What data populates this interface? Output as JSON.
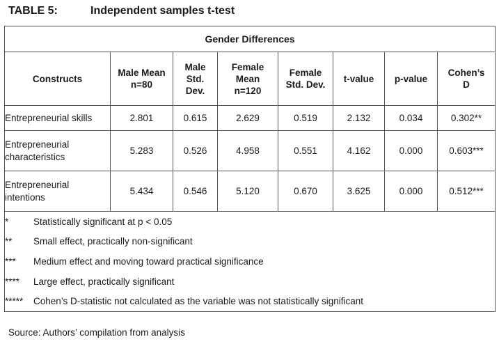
{
  "caption": {
    "number": "TABLE 5:",
    "title": "Independent samples t-test"
  },
  "table": {
    "group_header": "Gender Differences",
    "columns": [
      [
        "Constructs"
      ],
      [
        "Male Mean",
        "n=80"
      ],
      [
        "Male",
        "Std.",
        "Dev."
      ],
      [
        "Female",
        "Mean",
        "n=120"
      ],
      [
        "Female",
        "Std. Dev."
      ],
      [
        "t-value"
      ],
      [
        "p-value"
      ],
      [
        "Cohen’s",
        "D"
      ]
    ],
    "rows": [
      {
        "construct": [
          "Entrepreneurial skills"
        ],
        "values": [
          "2.801",
          "0.615",
          "2.629",
          "0.519",
          "2.132",
          "0.034",
          "0.302**"
        ]
      },
      {
        "construct": [
          "Entrepreneurial",
          "characteristics"
        ],
        "values": [
          "5.283",
          "0.526",
          "4.958",
          "0.551",
          "4.162",
          "0.000",
          "0.603***"
        ]
      },
      {
        "construct": [
          "Entrepreneurial",
          "intentions"
        ],
        "values": [
          "5.434",
          "0.546",
          "5.120",
          "0.670",
          "3.625",
          "0.000",
          "0.512***"
        ]
      }
    ],
    "notes": [
      {
        "mark": "*",
        "text": "Statistically significant at p < 0.05"
      },
      {
        "mark": "**",
        "text": "Small effect, practically non-significant"
      },
      {
        "mark": "***",
        "text": "Medium effect and moving toward practical significance"
      },
      {
        "mark": "****",
        "text": "Large effect, practically significant"
      },
      {
        "mark": "*****",
        "text": "Cohen’s D-statistic not calculated as the variable was not statistically significant"
      }
    ]
  },
  "source": "Source: Authors’ compilation from analysis"
}
